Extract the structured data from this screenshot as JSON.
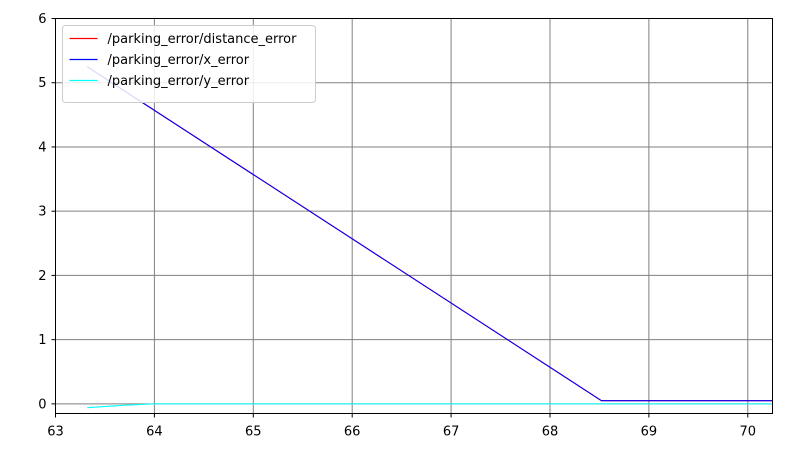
{
  "chart_data": {
    "type": "line",
    "title": "",
    "xlabel": "",
    "ylabel": "",
    "xlim": [
      63.0,
      70.25
    ],
    "ylim": [
      -0.15,
      6.0
    ],
    "x_ticks": [
      63,
      64,
      65,
      66,
      67,
      68,
      69,
      70
    ],
    "x_tick_labels": [
      "63",
      "64",
      "65",
      "66",
      "67",
      "68",
      "69",
      "70"
    ],
    "y_ticks": [
      0,
      1,
      2,
      3,
      4,
      5,
      6
    ],
    "y_tick_labels": [
      "0",
      "1",
      "2",
      "3",
      "4",
      "5",
      "6"
    ],
    "grid": true,
    "grid_color": "#808080",
    "legend_position": "top-left",
    "series": [
      {
        "name": "/parking_error/distance_error",
        "color": "#ff0000",
        "points": [
          [
            63.32,
            5.25
          ],
          [
            68.52,
            0.05
          ],
          [
            70.25,
            0.05
          ]
        ]
      },
      {
        "name": "/parking_error/x_error",
        "color": "#0000ff",
        "points": [
          [
            63.32,
            5.25
          ],
          [
            68.52,
            0.05
          ],
          [
            70.25,
            0.05
          ]
        ]
      },
      {
        "name": "/parking_error/y_error",
        "color": "#00ffff",
        "points": [
          [
            63.32,
            -0.06
          ],
          [
            63.7,
            -0.02
          ],
          [
            64.0,
            0.0
          ],
          [
            64.5,
            0.0
          ],
          [
            70.25,
            0.0
          ]
        ]
      }
    ]
  }
}
